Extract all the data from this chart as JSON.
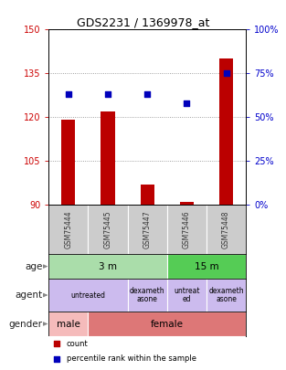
{
  "title": "GDS2231 / 1369978_at",
  "samples": [
    "GSM75444",
    "GSM75445",
    "GSM75447",
    "GSM75446",
    "GSM75448"
  ],
  "counts": [
    119,
    122,
    97,
    91,
    140
  ],
  "percentiles": [
    63,
    63,
    63,
    58,
    75
  ],
  "ymin": 90,
  "ymax": 150,
  "yticks": [
    90,
    105,
    120,
    135,
    150
  ],
  "y2min": 0,
  "y2max": 100,
  "y2ticks": [
    0,
    25,
    50,
    75,
    100
  ],
  "bar_color": "#bb0000",
  "dot_color": "#0000bb",
  "bar_bottom": 90,
  "age_groups": [
    {
      "text": "3 m",
      "start": 0,
      "end": 3,
      "color": "#aaddaa"
    },
    {
      "text": "15 m",
      "start": 3,
      "end": 5,
      "color": "#55cc55"
    }
  ],
  "agent_groups": [
    {
      "text": "untreated",
      "start": 0,
      "end": 2,
      "color": "#ccbbee"
    },
    {
      "text": "dexameth\nasone",
      "start": 2,
      "end": 3,
      "color": "#ccbbee"
    },
    {
      "text": "untreat\ned",
      "start": 3,
      "end": 4,
      "color": "#ccbbee"
    },
    {
      "text": "dexameth\nasone",
      "start": 4,
      "end": 5,
      "color": "#ccbbee"
    }
  ],
  "gender_groups": [
    {
      "text": "male",
      "start": 0,
      "end": 1,
      "color": "#f5bbbb"
    },
    {
      "text": "female",
      "start": 1,
      "end": 5,
      "color": "#dd7777"
    }
  ],
  "row_labels": [
    "age",
    "agent",
    "gender"
  ],
  "legend_items": [
    {
      "label": "count",
      "color": "#bb0000"
    },
    {
      "label": "percentile rank within the sample",
      "color": "#0000bb"
    }
  ],
  "sample_box_color": "#cccccc",
  "ytick_color": "#cc0000",
  "y2tick_color": "#0000cc",
  "grid_color": "#888888",
  "n_samples": 5
}
